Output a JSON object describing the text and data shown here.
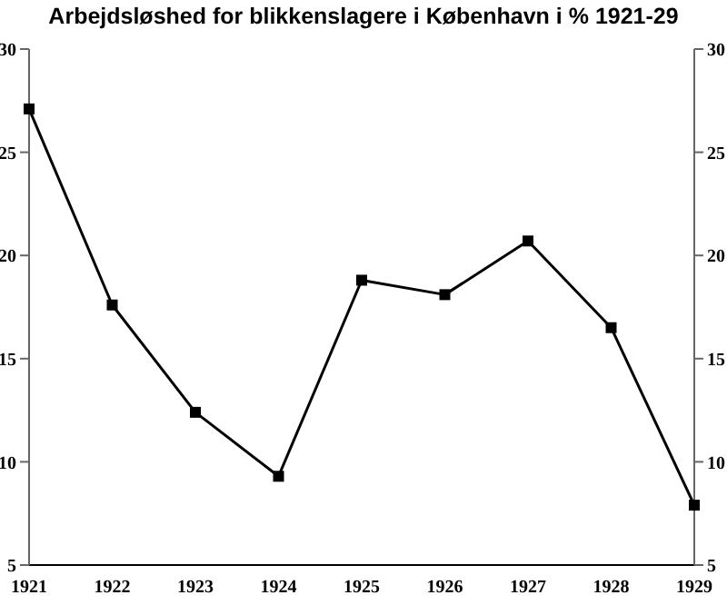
{
  "chart_data": {
    "type": "line",
    "title": "Arbejdsløshed for blikkenslagere i København i % 1921-29",
    "categories": [
      "1921",
      "1922",
      "1923",
      "1924",
      "1925",
      "1926",
      "1927",
      "1928",
      "1929"
    ],
    "series": [
      {
        "color": "#000000",
        "values": [
          27.1,
          17.6,
          12.4,
          9.3,
          18.8,
          18.1,
          20.7,
          16.5,
          7.9
        ]
      }
    ],
    "ylim": [
      5,
      30
    ],
    "yticks": [
      5,
      10,
      15,
      20,
      25,
      30
    ],
    "y2lim": [
      5,
      30
    ],
    "y2ticks": [
      5,
      10,
      15,
      20,
      25,
      30
    ],
    "grid": false,
    "legend": false,
    "marker": "square",
    "line_style": "solid"
  }
}
